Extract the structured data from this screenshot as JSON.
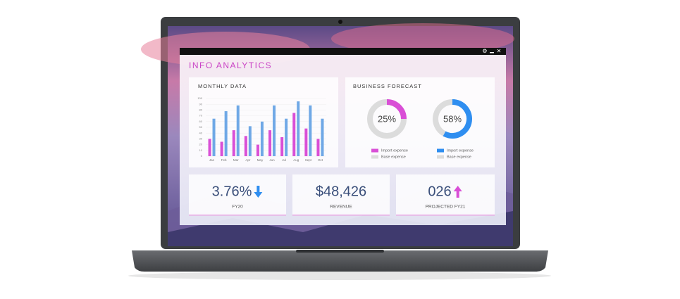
{
  "window": {
    "title": "INFO ANALYTICS"
  },
  "forecast_title": "BUSINESS FORECAST",
  "chart_data": [
    {
      "type": "bar",
      "title": "MONTHLY DATA",
      "categories": [
        "Jan",
        "Feb",
        "Mar",
        "Apr",
        "May",
        "Jun",
        "Jul",
        "Aug",
        "Sept",
        "Oct"
      ],
      "series": [
        {
          "color": "#d94fd6",
          "values": [
            30,
            25,
            45,
            35,
            20,
            45,
            33,
            75,
            48,
            30
          ]
        },
        {
          "color": "#6fa8e6",
          "values": [
            65,
            78,
            88,
            52,
            60,
            88,
            65,
            95,
            88,
            65
          ]
        }
      ],
      "ylim": [
        0,
        100
      ],
      "yticks": [
        0,
        10,
        20,
        30,
        40,
        50,
        60,
        70,
        80,
        90,
        100
      ],
      "grid": true
    },
    {
      "type": "pie",
      "categories": [
        "Import expense",
        "Base expense"
      ],
      "values": [
        25,
        75
      ],
      "value_labels": [
        "25%",
        null
      ],
      "colors": [
        "#d94fd6",
        "#dcdcdc"
      ]
    },
    {
      "type": "pie",
      "categories": [
        "Import expense",
        "Base expense"
      ],
      "values": [
        58,
        42
      ],
      "value_labels": [
        "58%",
        null
      ],
      "colors": [
        "#2f8ef0",
        "#dcdcdc"
      ]
    }
  ],
  "kpis": [
    {
      "value": "3.76%",
      "caption": "FY20",
      "trend": "down"
    },
    {
      "value": "$48,426",
      "caption": "REVENUE"
    },
    {
      "value": "026",
      "caption": "PROJECTED FY21",
      "trend": "up"
    }
  ]
}
